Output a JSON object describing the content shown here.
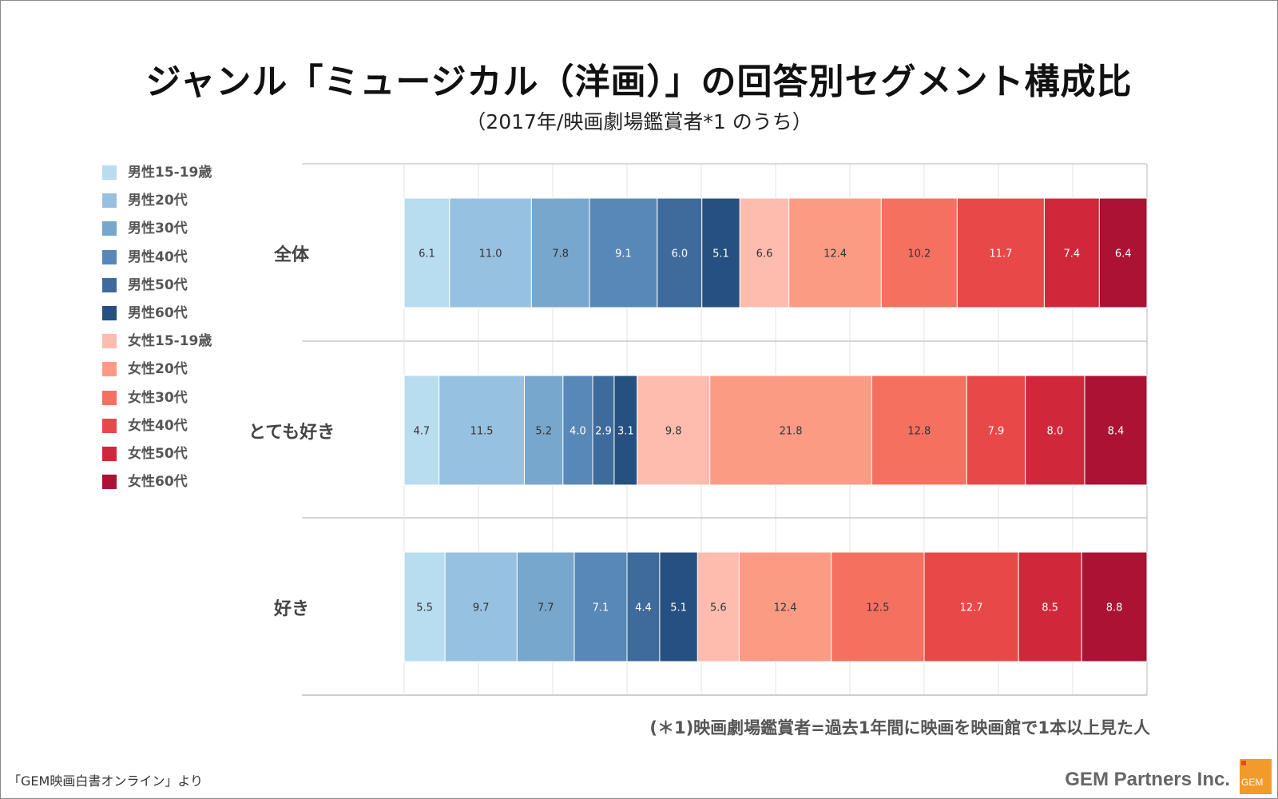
{
  "title": "ジャンル「ミュージカル（洋画）」の回答別セグメント構成比",
  "subtitle": "（2017年/映画劇場鑑賞者*1 のうち）",
  "note": "(＊1)映画劇場鑑賞者=過去1年間に映画を映画館で1本以上見た人",
  "source": "「GEM映画白書オンライン」より",
  "company": "GEM Partners Inc.",
  "logo_text": "GEM",
  "chart_data": {
    "type": "bar",
    "orientation": "horizontal",
    "stacked": "percent",
    "categories": [
      "全体",
      "とても好き",
      "好き"
    ],
    "series": [
      {
        "name": "男性15-19歳",
        "color": "#b8dcf0",
        "label_color": "#333333",
        "values": [
          6.1,
          4.7,
          5.5
        ]
      },
      {
        "name": "男性20代",
        "color": "#96c1e1",
        "label_color": "#333333",
        "values": [
          11.0,
          11.5,
          9.7
        ]
      },
      {
        "name": "男性30代",
        "color": "#77a7cd",
        "label_color": "#333333",
        "values": [
          7.8,
          5.2,
          7.7
        ]
      },
      {
        "name": "男性40代",
        "color": "#5888b7",
        "label_color": "#ffffff",
        "values": [
          9.1,
          4.0,
          7.1
        ]
      },
      {
        "name": "男性50代",
        "color": "#3e6b9c",
        "label_color": "#ffffff",
        "values": [
          6.0,
          2.9,
          4.4
        ]
      },
      {
        "name": "男性60代",
        "color": "#25507f",
        "label_color": "#ffffff",
        "values": [
          5.1,
          3.1,
          5.1
        ]
      },
      {
        "name": "女性15-19歳",
        "color": "#fdbcad",
        "label_color": "#333333",
        "values": [
          6.6,
          9.8,
          5.6
        ]
      },
      {
        "name": "女性20代",
        "color": "#fb9b84",
        "label_color": "#333333",
        "values": [
          12.4,
          21.8,
          12.4
        ]
      },
      {
        "name": "女性30代",
        "color": "#f47160",
        "label_color": "#333333",
        "values": [
          10.2,
          12.8,
          12.5
        ]
      },
      {
        "name": "女性40代",
        "color": "#e84848",
        "label_color": "#ffffff",
        "values": [
          11.7,
          7.9,
          12.7
        ]
      },
      {
        "name": "女性50代",
        "color": "#d0283a",
        "label_color": "#ffffff",
        "values": [
          7.4,
          8.0,
          8.5
        ]
      },
      {
        "name": "女性60代",
        "color": "#ab1234",
        "label_color": "#ffffff",
        "values": [
          6.4,
          8.4,
          8.8
        ]
      }
    ],
    "xlim": [
      0,
      100
    ],
    "grid": true,
    "legend": "left"
  }
}
